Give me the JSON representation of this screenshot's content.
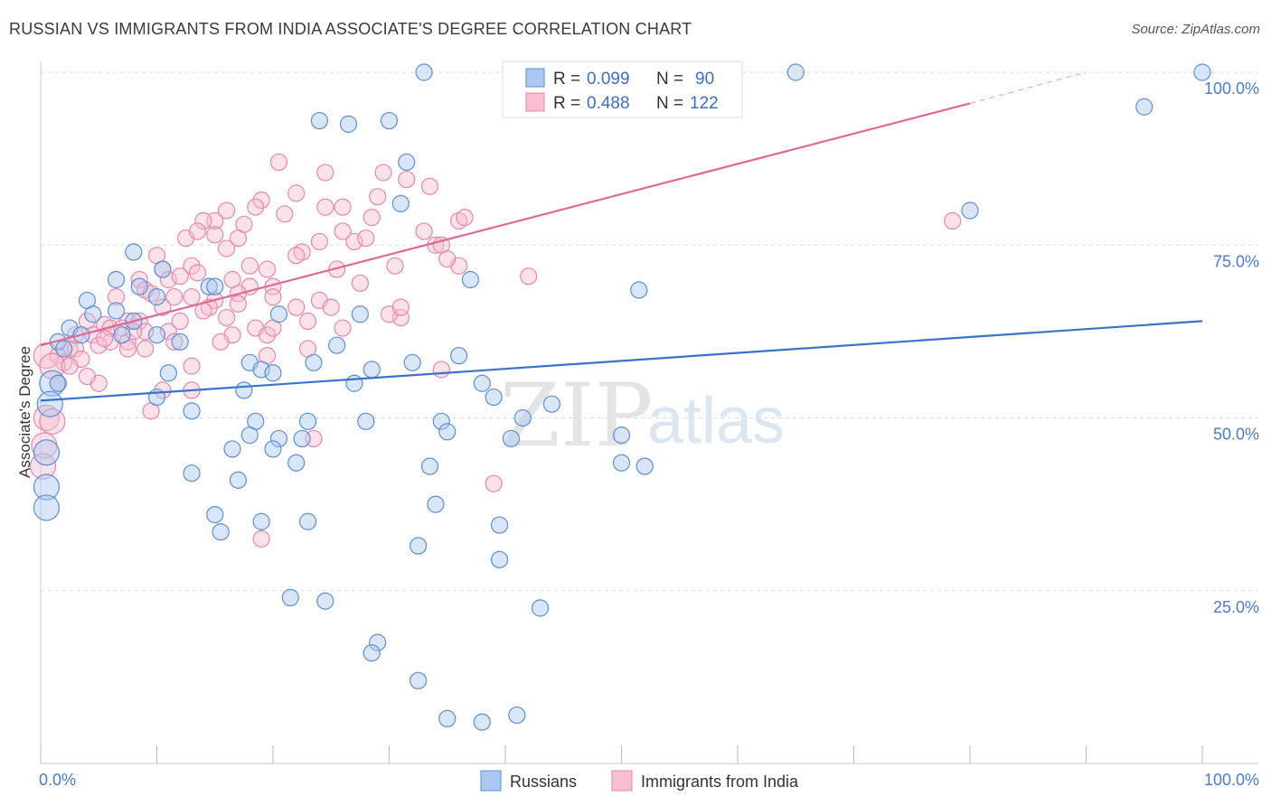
{
  "title": "RUSSIAN VS IMMIGRANTS FROM INDIA ASSOCIATE'S DEGREE CORRELATION CHART",
  "source": "Source: ZipAtlas.com",
  "watermark": {
    "zip": "ZIP",
    "atlas": "atlas"
  },
  "legend_top": {
    "r_label": "R =",
    "n_label": "N =",
    "rows": [
      {
        "r": "0.099",
        "n": "90"
      },
      {
        "r": "0.488",
        "n": "122"
      }
    ]
  },
  "chart_data": {
    "type": "scatter",
    "title": "RUSSIAN VS IMMIGRANTS FROM INDIA ASSOCIATE'S DEGREE CORRELATION CHART",
    "xlabel": "",
    "ylabel": "Associate's Degree",
    "xlim": [
      0,
      100
    ],
    "ylim": [
      0,
      100
    ],
    "x_tick_labels": [
      "0.0%",
      "100.0%"
    ],
    "y_ticks": [
      25,
      50,
      75,
      100
    ],
    "y_tick_labels": [
      "25.0%",
      "50.0%",
      "75.0%",
      "100.0%"
    ],
    "grid": "horizontal dashed",
    "legend_placement": "top-center",
    "colors": {
      "russians_fill": "#aac8ef",
      "russians_stroke": "#5b8fd6",
      "russians_line": "#3a72cc",
      "india_fill": "#f7bfd0",
      "india_stroke": "#e888a8",
      "india_line": "#e06a95"
    },
    "series": [
      {
        "name": "Russians",
        "r": 0.099,
        "n": 90,
        "trend": {
          "x0": 0,
          "y0": 52.5,
          "x1": 100,
          "y1": 64
        },
        "points": [
          [
            33,
            100
          ],
          [
            65,
            100
          ],
          [
            100,
            100
          ],
          [
            95,
            95
          ],
          [
            24,
            93
          ],
          [
            26.5,
            92.5
          ],
          [
            30,
            93
          ],
          [
            31.5,
            87
          ],
          [
            31,
            81
          ],
          [
            80,
            80
          ],
          [
            8,
            74
          ],
          [
            10.5,
            71.5
          ],
          [
            6.5,
            70
          ],
          [
            8.5,
            69
          ],
          [
            14.5,
            69
          ],
          [
            15,
            69
          ],
          [
            37,
            70
          ],
          [
            51.5,
            68.5
          ],
          [
            4,
            67
          ],
          [
            10,
            67.5
          ],
          [
            6.5,
            65.5
          ],
          [
            4.5,
            65
          ],
          [
            27.5,
            65
          ],
          [
            20.5,
            65
          ],
          [
            8,
            64
          ],
          [
            2.5,
            63
          ],
          [
            3.5,
            62
          ],
          [
            7,
            62
          ],
          [
            10,
            62
          ],
          [
            1.5,
            61
          ],
          [
            12,
            61
          ],
          [
            25.5,
            60.5
          ],
          [
            2,
            60
          ],
          [
            18,
            58
          ],
          [
            23.5,
            58
          ],
          [
            19,
            57
          ],
          [
            28.5,
            57
          ],
          [
            11,
            56.5
          ],
          [
            20,
            56.5
          ],
          [
            27,
            55
          ],
          [
            1,
            55
          ],
          [
            1.5,
            55
          ],
          [
            17.5,
            54
          ],
          [
            10,
            53
          ],
          [
            39,
            53
          ],
          [
            0.8,
            52
          ],
          [
            13,
            51
          ],
          [
            18.5,
            49.5
          ],
          [
            23,
            49.5
          ],
          [
            28,
            49.5
          ],
          [
            34.5,
            49.5
          ],
          [
            35,
            48
          ],
          [
            18,
            47.5
          ],
          [
            20.5,
            47
          ],
          [
            22.5,
            47
          ],
          [
            50,
            47.5
          ],
          [
            16.5,
            45.5
          ],
          [
            0.5,
            45
          ],
          [
            20,
            45.5
          ],
          [
            22,
            43.5
          ],
          [
            33.5,
            43
          ],
          [
            50,
            43.5
          ],
          [
            52,
            43
          ],
          [
            13,
            42
          ],
          [
            17,
            41
          ],
          [
            0.5,
            40
          ],
          [
            0.5,
            37
          ],
          [
            34,
            37.5
          ],
          [
            15,
            36
          ],
          [
            19,
            35
          ],
          [
            23,
            35
          ],
          [
            39.5,
            34.5
          ],
          [
            15.5,
            33.5
          ],
          [
            32.5,
            31.5
          ],
          [
            39.5,
            29.5
          ],
          [
            21.5,
            24
          ],
          [
            24.5,
            23.5
          ],
          [
            43,
            22.5
          ],
          [
            29,
            17.5
          ],
          [
            28.5,
            16
          ],
          [
            32.5,
            12
          ],
          [
            35,
            6.5
          ],
          [
            38,
            6
          ],
          [
            41,
            7
          ],
          [
            38,
            55
          ],
          [
            44,
            52
          ],
          [
            41.5,
            50
          ],
          [
            40.5,
            47
          ],
          [
            32,
            58
          ],
          [
            36,
            59
          ]
        ]
      },
      {
        "name": "Immigrants from India",
        "r": 0.488,
        "n": 122,
        "trend": {
          "x0": 0,
          "y0": 60.5,
          "x1": 80,
          "y1": 95.5
        },
        "trend_dashed": {
          "x0": 80,
          "y0": 95.5,
          "x1": 90,
          "y1": 100
        },
        "points": [
          [
            20.5,
            87
          ],
          [
            24.5,
            85.5
          ],
          [
            29.5,
            85.5
          ],
          [
            31.5,
            84.5
          ],
          [
            33.5,
            83.5
          ],
          [
            22,
            82.5
          ],
          [
            29,
            82
          ],
          [
            19,
            81.5
          ],
          [
            18.5,
            80.5
          ],
          [
            24.5,
            80.5
          ],
          [
            26,
            80.5
          ],
          [
            16,
            80
          ],
          [
            21,
            79.5
          ],
          [
            28.5,
            79
          ],
          [
            15,
            78.5
          ],
          [
            17.5,
            78
          ],
          [
            14,
            78.5
          ],
          [
            26,
            77
          ],
          [
            36,
            78.5
          ],
          [
            12.5,
            76
          ],
          [
            15,
            76.5
          ],
          [
            13.5,
            77
          ],
          [
            17,
            76
          ],
          [
            27,
            75.5
          ],
          [
            24,
            75.5
          ],
          [
            16,
            74.5
          ],
          [
            22.5,
            74
          ],
          [
            34,
            75
          ],
          [
            10,
            73.5
          ],
          [
            13,
            72
          ],
          [
            10.5,
            71.5
          ],
          [
            19.5,
            71.5
          ],
          [
            13.5,
            71
          ],
          [
            8.5,
            70
          ],
          [
            11,
            70
          ],
          [
            16.5,
            70
          ],
          [
            18,
            69
          ],
          [
            20,
            69
          ],
          [
            9,
            68.5
          ],
          [
            13,
            67.5
          ],
          [
            17,
            68
          ],
          [
            9.5,
            68
          ],
          [
            11.5,
            67.5
          ],
          [
            6.5,
            67.5
          ],
          [
            20,
            67.5
          ],
          [
            15,
            67
          ],
          [
            24,
            67
          ],
          [
            10.5,
            66
          ],
          [
            14.5,
            66
          ],
          [
            22,
            66
          ],
          [
            25,
            66
          ],
          [
            4,
            64
          ],
          [
            7.5,
            64
          ],
          [
            8.5,
            64
          ],
          [
            16,
            64.5
          ],
          [
            31,
            64.5
          ],
          [
            5.5,
            63.5
          ],
          [
            6,
            63
          ],
          [
            7,
            63
          ],
          [
            11,
            62.5
          ],
          [
            18.5,
            63
          ],
          [
            9,
            62.5
          ],
          [
            4.5,
            62
          ],
          [
            16.5,
            62
          ],
          [
            19.5,
            62
          ],
          [
            6,
            61
          ],
          [
            7.5,
            61
          ],
          [
            11.5,
            61
          ],
          [
            15.5,
            61
          ],
          [
            2.5,
            60
          ],
          [
            3,
            60
          ],
          [
            5,
            60.5
          ],
          [
            7.5,
            60
          ],
          [
            9,
            60
          ],
          [
            0.5,
            59
          ],
          [
            1.5,
            59
          ],
          [
            3.5,
            58.5
          ],
          [
            2,
            58
          ],
          [
            1,
            57.5
          ],
          [
            13,
            57.5
          ],
          [
            34.5,
            57
          ],
          [
            1.5,
            55
          ],
          [
            5,
            55
          ],
          [
            10.5,
            54
          ],
          [
            13,
            54
          ],
          [
            9.5,
            51
          ],
          [
            0.5,
            50
          ],
          [
            1,
            49.5
          ],
          [
            0.3,
            46
          ],
          [
            23.5,
            47
          ],
          [
            0.2,
            43
          ],
          [
            39,
            40.5
          ],
          [
            19,
            32.5
          ],
          [
            42,
            70.5
          ],
          [
            36,
            72
          ],
          [
            30.5,
            72
          ],
          [
            36.5,
            79
          ],
          [
            34.5,
            75
          ],
          [
            25.5,
            71.5
          ],
          [
            27.5,
            69.5
          ],
          [
            30,
            65
          ],
          [
            31,
            66
          ],
          [
            23,
            64
          ],
          [
            20,
            63
          ],
          [
            26,
            63
          ],
          [
            78.5,
            78.5
          ],
          [
            33,
            77
          ],
          [
            28,
            76
          ],
          [
            35,
            73
          ],
          [
            22,
            73.5
          ],
          [
            18,
            72
          ],
          [
            12,
            70.5
          ],
          [
            14,
            65.5
          ],
          [
            17,
            66.5
          ],
          [
            3,
            62
          ],
          [
            5.5,
            61.5
          ],
          [
            8,
            62.5
          ],
          [
            12,
            64
          ],
          [
            2.5,
            57.5
          ],
          [
            4,
            56
          ],
          [
            19.5,
            59
          ],
          [
            23,
            60
          ]
        ]
      }
    ]
  },
  "bottom_legend": [
    "Russians",
    "Immigrants from India"
  ]
}
